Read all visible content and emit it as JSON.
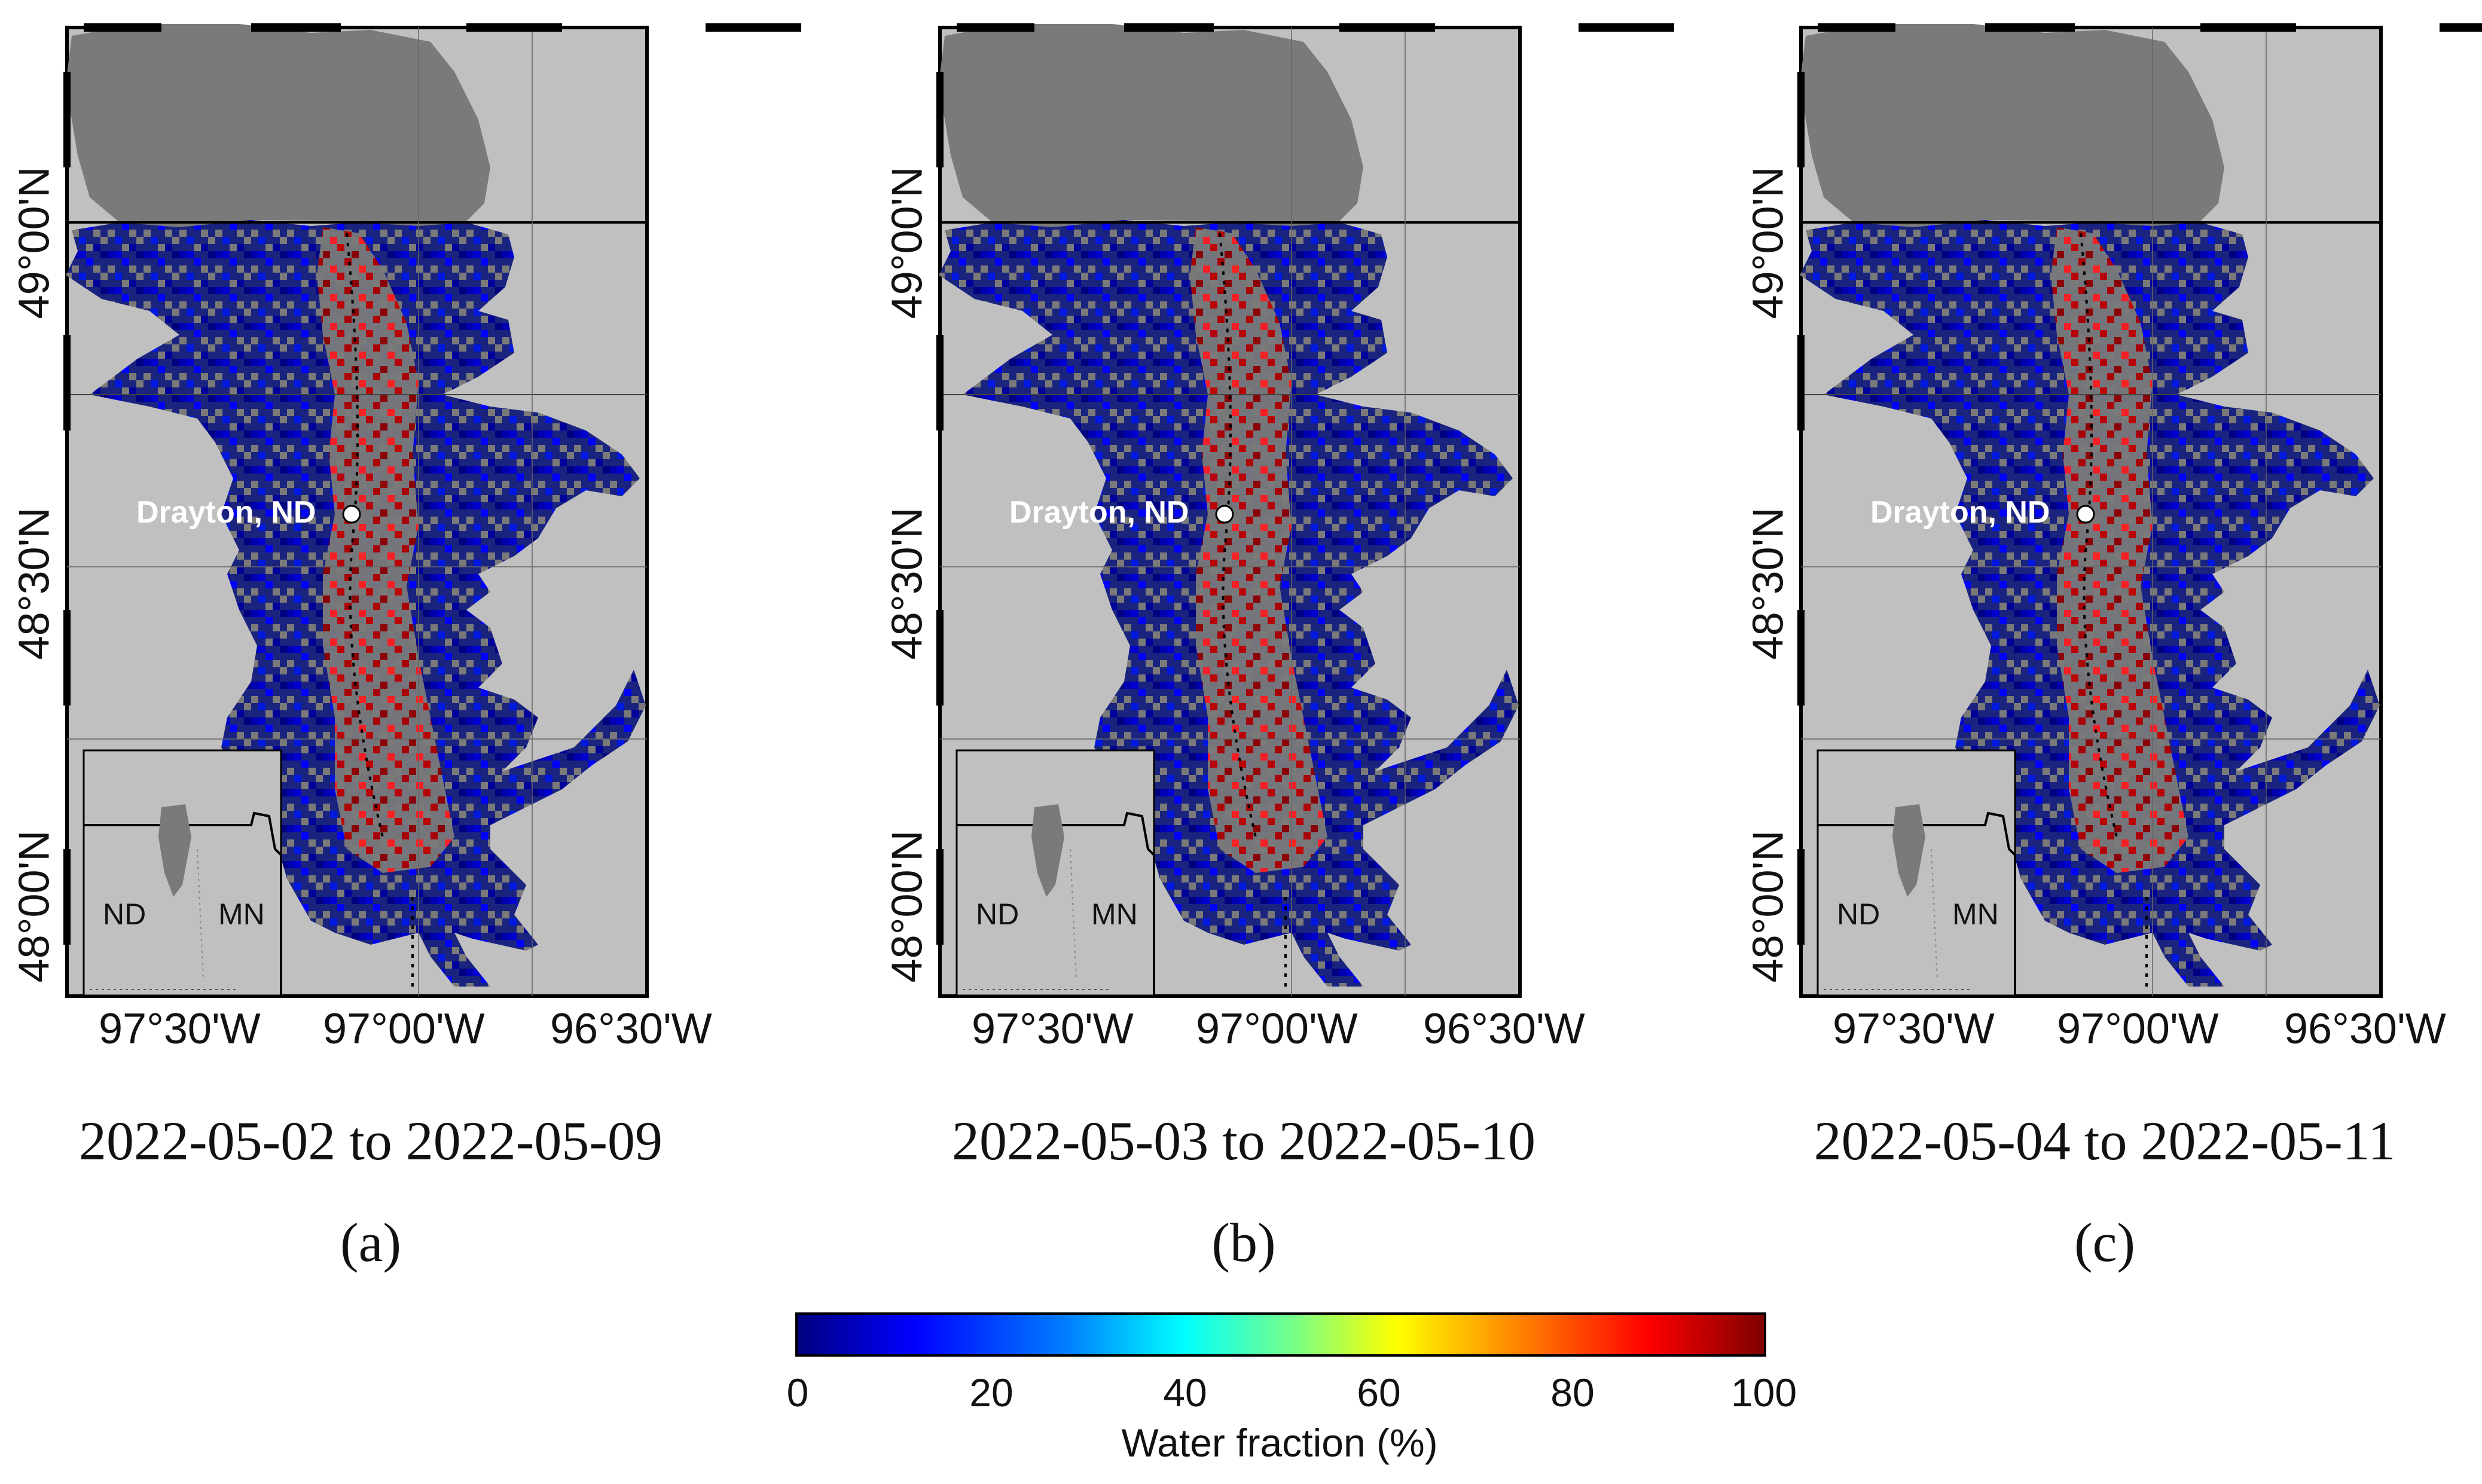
{
  "panels": [
    {
      "id": "a",
      "date_range": "2022-05-02 to 2022-05-09",
      "label": "(a)"
    },
    {
      "id": "b",
      "date_range": "2022-05-03 to 2022-05-10",
      "label": "(b)"
    },
    {
      "id": "c",
      "date_range": "2022-05-04 to 2022-05-11",
      "label": "(c)"
    }
  ],
  "axes": {
    "lat_labels": [
      "49°00'N",
      "48°30'N",
      "48°00'N"
    ],
    "lon_labels": [
      "97°30'W",
      "97°00'W",
      "96°30'W"
    ]
  },
  "map": {
    "city_label": "Drayton, ND",
    "inset_left_state": "ND",
    "inset_right_state": "MN"
  },
  "colorbar": {
    "title": "Water fraction (%)",
    "ticks": [
      "0",
      "20",
      "40",
      "60",
      "80",
      "100"
    ],
    "tick_values": [
      0,
      20,
      40,
      60,
      80,
      100
    ],
    "min": 0,
    "max": 100
  },
  "colors": {
    "background": "#c0c0c0",
    "land_mask": "#7a7a7a",
    "low_fraction": "#00007f",
    "high_fraction": "#7f0000"
  }
}
